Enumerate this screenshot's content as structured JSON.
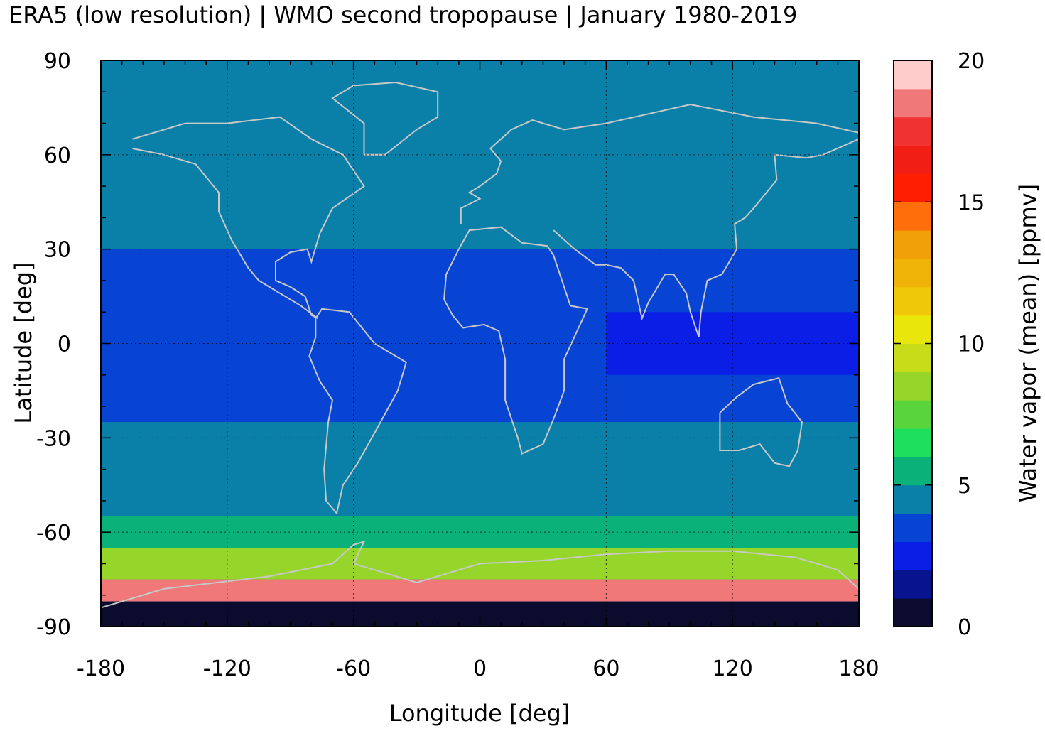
{
  "chart_data": {
    "type": "heatmap",
    "title": "ERA5 (low resolution) | WMO second tropopause | January 1980-2019",
    "xlabel": "Longitude [deg]",
    "ylabel": "Latitude [deg]",
    "colorbar_label": "Water vapor (mean) [ppmv]",
    "xlim": [
      -180,
      180
    ],
    "ylim": [
      -90,
      90
    ],
    "x_ticks": [
      -180,
      -120,
      -60,
      0,
      60,
      120,
      180
    ],
    "y_ticks": [
      90,
      60,
      30,
      0,
      -30,
      -60,
      -90
    ],
    "colorbar_ticks": [
      20,
      15,
      10,
      5,
      0
    ],
    "colorbar_range": [
      0,
      20
    ],
    "grid": true,
    "palette": [
      "#0b0b2e",
      "#08148f",
      "#0a1ee6",
      "#0844d4",
      "#0a7fa8",
      "#0ab27a",
      "#1ee05c",
      "#5ad43c",
      "#96d62a",
      "#c8dc1a",
      "#e8e60a",
      "#f0c80a",
      "#f0b408",
      "#f0a008",
      "#ff6e0a",
      "#ff1e00",
      "#f01e14",
      "#f03232",
      "#f07878",
      "#ffcccc"
    ],
    "zonal_bands": [
      {
        "lat_range": [
          30,
          90
        ],
        "value": 4.5
      },
      {
        "lat_range": [
          -25,
          30
        ],
        "value": 3.5
      },
      {
        "lat_range": [
          -10,
          10
        ],
        "value": 2.5,
        "lon_range": [
          60,
          180
        ]
      },
      {
        "lat_range": [
          -55,
          -25
        ],
        "value": 4.5
      },
      {
        "lat_range": [
          -65,
          -55
        ],
        "value": 5.5
      },
      {
        "lat_range": [
          -75,
          -65
        ],
        "value": 8.0
      },
      {
        "lat_range": [
          -82,
          -75
        ],
        "value": 18.0
      },
      {
        "lat_range": [
          -90,
          -82
        ],
        "value": 0.5
      }
    ],
    "map_overlay": "coastlines"
  }
}
